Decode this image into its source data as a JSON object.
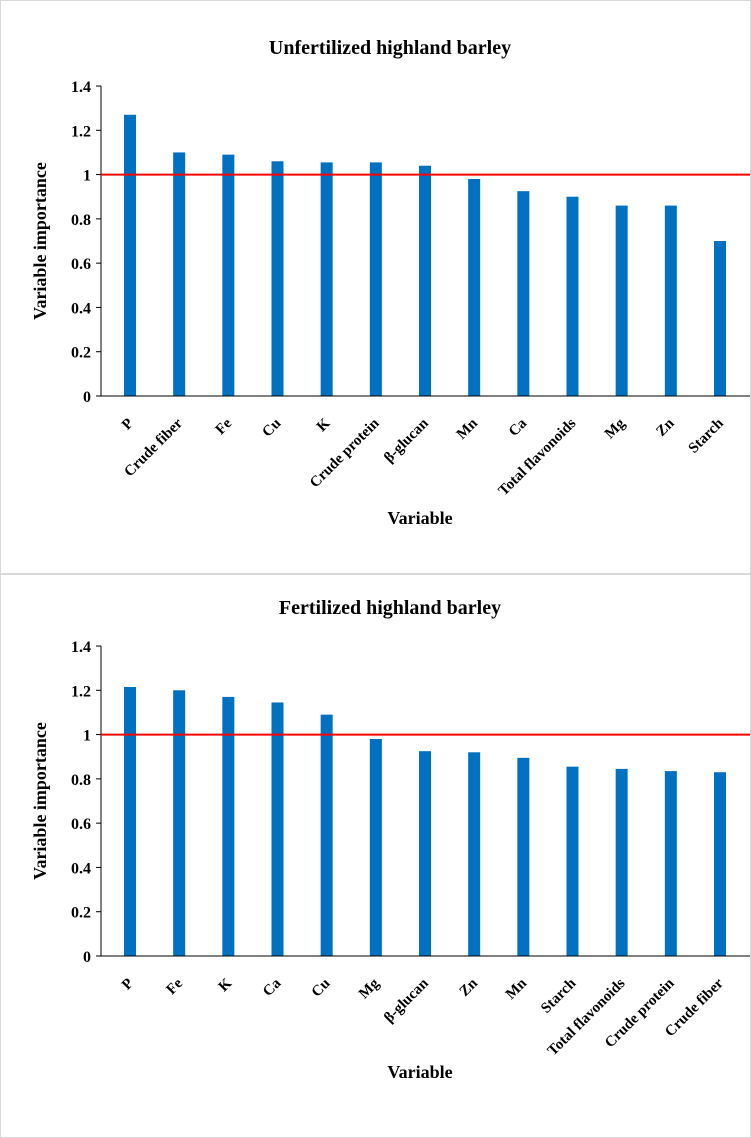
{
  "chart_data": [
    {
      "type": "bar",
      "title": "Unfertilized highland barley",
      "xlabel": "Variable",
      "ylabel": "Variable importance",
      "ylim": [
        0,
        1.4
      ],
      "yticks": [
        "0",
        "0.2",
        "0.4",
        "0.6",
        "0.8",
        "1",
        "1.2",
        "1.4"
      ],
      "categories": [
        "P",
        "Crude fiber",
        "Fe",
        "Cu",
        "K",
        "Crude protein",
        "β-glucan",
        "Mn",
        "Ca",
        "Total flavonoids",
        "Mg",
        "Zn",
        "Starch"
      ],
      "values": [
        1.27,
        1.1,
        1.09,
        1.06,
        1.055,
        1.055,
        1.04,
        0.98,
        0.925,
        0.9,
        0.86,
        0.86,
        0.7
      ],
      "reference_line": 1,
      "bar_color": "#0070C0",
      "line_color": "#FF0000",
      "grid": false
    },
    {
      "type": "bar",
      "title": "Fertilized highland barley",
      "xlabel": "Variable",
      "ylabel": "Variable importance",
      "ylim": [
        0,
        1.4
      ],
      "yticks": [
        "0",
        "0.2",
        "0.4",
        "0.6",
        "0.8",
        "1",
        "1.2",
        "1.4"
      ],
      "categories": [
        "P",
        "Fe",
        "K",
        "Ca",
        "Cu",
        "Mg",
        "β-glucan",
        "Zn",
        "Mn",
        "Starch",
        "Total flavonoids",
        "Crude protein",
        "Crude fiber"
      ],
      "values": [
        1.215,
        1.2,
        1.17,
        1.145,
        1.09,
        0.98,
        0.925,
        0.92,
        0.895,
        0.855,
        0.845,
        0.835,
        0.83
      ],
      "reference_line": 1,
      "bar_color": "#0070C0",
      "line_color": "#FF0000",
      "grid": false
    }
  ]
}
